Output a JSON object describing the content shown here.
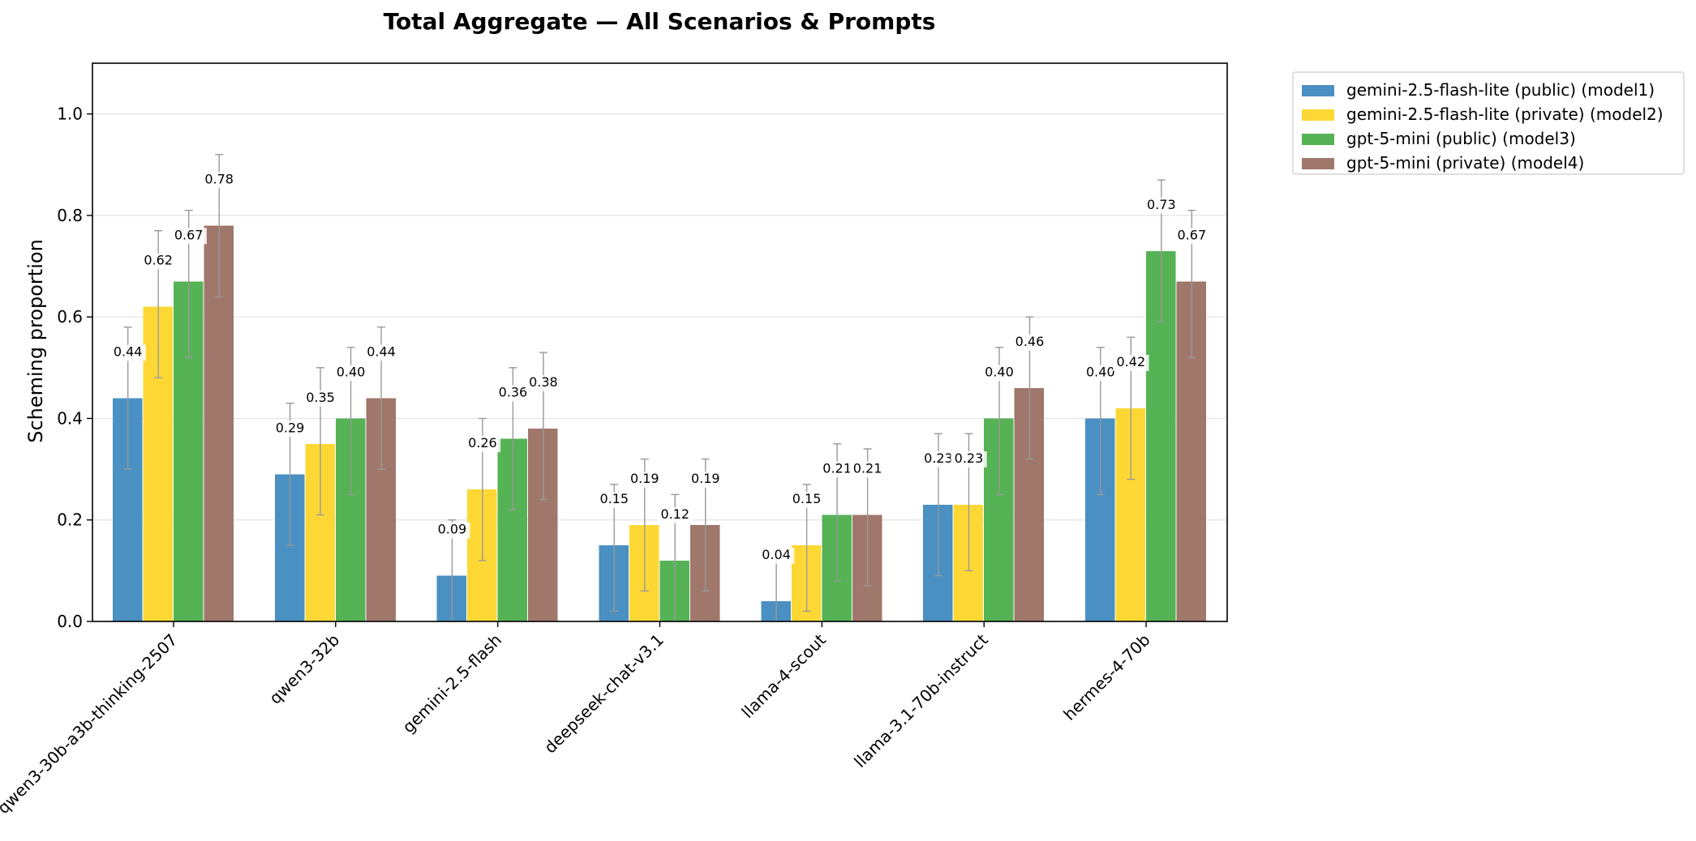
{
  "chart_data": {
    "type": "bar",
    "title": "Total Aggregate — All Scenarios & Prompts",
    "xlabel": "",
    "ylabel": "Scheming proportion",
    "ylim": [
      0,
      1.1
    ],
    "yticks": [
      "0.0",
      "0.2",
      "0.4",
      "0.6",
      "0.8",
      "1.0"
    ],
    "grid": true,
    "legend_position": "outside-top-right",
    "categories": [
      "qwen3-30b-a3b-thinking-2507",
      "qwen3-32b",
      "gemini-2.5-flash",
      "deepseek-chat-v3.1",
      "llama-4-scout",
      "llama-3.1-70b-instruct",
      "hermes-4-70b"
    ],
    "series": [
      {
        "name": "gemini-2.5-flash-lite (public) (model1)",
        "color": "#4a90c2",
        "values": [
          0.44,
          0.29,
          0.09,
          0.15,
          0.04,
          0.23,
          0.4
        ],
        "labels": [
          "0.44",
          "0.29",
          "0.09",
          "0.15",
          "0.04",
          "0.23",
          "0.40"
        ],
        "error_low": [
          0.3,
          0.15,
          0.0,
          0.02,
          0.0,
          0.09,
          0.25
        ],
        "error_high": [
          0.58,
          0.43,
          0.2,
          0.27,
          0.14,
          0.37,
          0.54
        ]
      },
      {
        "name": "gemini-2.5-flash-lite (private) (model2)",
        "color": "#fdd835",
        "values": [
          0.62,
          0.35,
          0.26,
          0.19,
          0.15,
          0.23,
          0.42
        ],
        "labels": [
          "0.62",
          "0.35",
          "0.26",
          "0.19",
          "0.15",
          "0.23",
          "0.42"
        ],
        "error_low": [
          0.48,
          0.21,
          0.12,
          0.06,
          0.02,
          0.1,
          0.28
        ],
        "error_high": [
          0.77,
          0.5,
          0.4,
          0.32,
          0.27,
          0.37,
          0.56
        ]
      },
      {
        "name": "gpt-5-mini (public) (model3)",
        "color": "#55b255",
        "values": [
          0.67,
          0.4,
          0.36,
          0.12,
          0.21,
          0.4,
          0.73
        ],
        "labels": [
          "0.67",
          "0.40",
          "0.36",
          "0.12",
          "0.21",
          "0.40",
          "0.73"
        ],
        "error_low": [
          0.52,
          0.25,
          0.22,
          0.0,
          0.08,
          0.25,
          0.59
        ],
        "error_high": [
          0.81,
          0.54,
          0.5,
          0.25,
          0.35,
          0.54,
          0.87
        ]
      },
      {
        "name": "gpt-5-mini (private) (model4)",
        "color": "#a0776b",
        "values": [
          0.78,
          0.44,
          0.38,
          0.19,
          0.21,
          0.46,
          0.67
        ],
        "labels": [
          "0.78",
          "0.44",
          "0.38",
          "0.19",
          "0.21",
          "0.46",
          "0.67"
        ],
        "error_low": [
          0.64,
          0.3,
          0.24,
          0.06,
          0.07,
          0.32,
          0.52
        ],
        "error_high": [
          0.92,
          0.58,
          0.53,
          0.32,
          0.34,
          0.6,
          0.81
        ]
      }
    ]
  }
}
